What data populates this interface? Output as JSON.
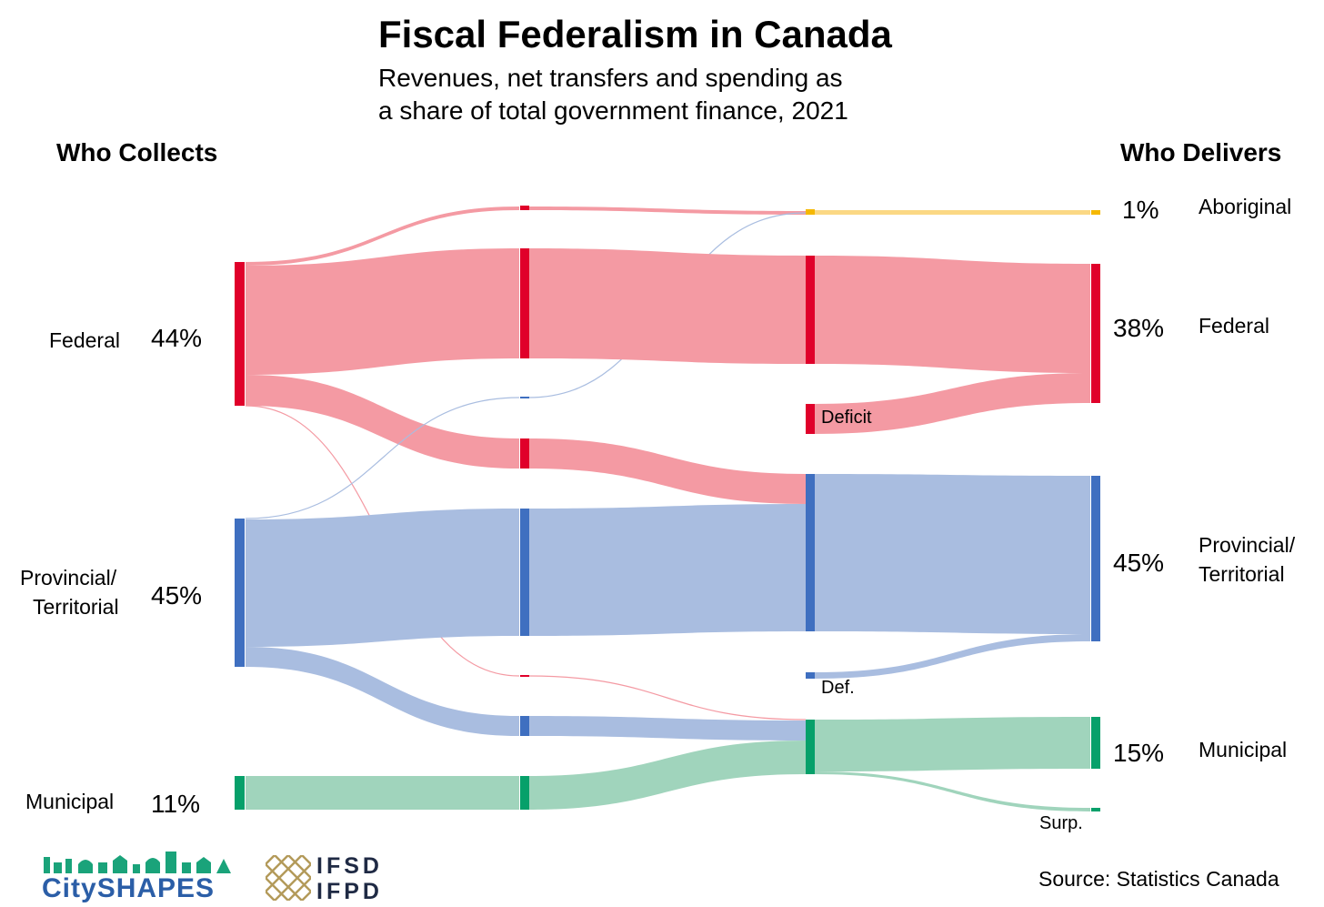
{
  "title": "Fiscal Federalism in Canada",
  "subtitle_line1": "Revenues, net transfers and spending as",
  "subtitle_line2": "a share of total government finance, 2021",
  "left_header": "Who Collects",
  "right_header": "Who Delivers",
  "collectors": [
    {
      "name": "Federal",
      "pct": "44%"
    },
    {
      "name_line1": "Provincial/",
      "name_line2": "Territorial",
      "pct": "45%"
    },
    {
      "name": "Municipal",
      "pct": "11%"
    }
  ],
  "deliverers": [
    {
      "name": "Aboriginal",
      "pct": "1%"
    },
    {
      "name": "Federal",
      "pct": "38%"
    },
    {
      "name_line1": "Provincial/",
      "name_line2": "Territorial",
      "pct": "45%"
    },
    {
      "name": "Municipal",
      "pct": "15%"
    }
  ],
  "node_labels": {
    "federal_deficit": "Deficit",
    "provincial_deficit": "Def.",
    "municipal_surplus": "Surp."
  },
  "source": "Source: Statistics Canada",
  "logos": {
    "cityshapes_part1": "City",
    "cityshapes_part2": "SHAPES",
    "ifsd_line1": "IFSD",
    "ifsd_line2": "IFPD"
  },
  "colors": {
    "federal": "#e0002a",
    "federal_flow": "#f49aa3",
    "provincial": "#3f6fc0",
    "provincial_flow": "#a9bde0",
    "municipal": "#06a06a",
    "municipal_flow": "#a0d4bc",
    "aboriginal": "#f5b800",
    "aboriginal_flow": "#fbd884",
    "cityshapes_green": "#1aa37a",
    "cityshapes_blue": "#2b5ea7",
    "ifsd_gold": "#b39a5a",
    "ifsd_navy": "#1f2a44"
  }
}
